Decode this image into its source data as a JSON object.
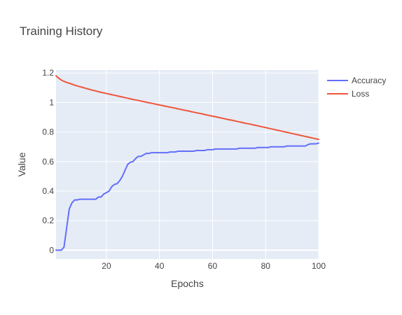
{
  "chart_data": {
    "type": "line",
    "title": "Training History",
    "xlabel": "Epochs",
    "ylabel": "Value",
    "xlim": [
      1,
      100
    ],
    "ylim": [
      -0.06,
      1.22
    ],
    "xticks": [
      20,
      40,
      60,
      80,
      100
    ],
    "yticks": [
      0,
      0.2,
      0.4,
      0.6,
      0.8,
      1,
      1.2
    ],
    "ytick_labels": [
      "0",
      "0.2",
      "0.4",
      "0.6",
      "0.8",
      "1",
      "1.2"
    ],
    "grid": true,
    "legend_position": "top-right",
    "x": [
      1,
      2,
      3,
      4,
      5,
      6,
      7,
      8,
      9,
      10,
      11,
      12,
      13,
      14,
      15,
      16,
      17,
      18,
      19,
      20,
      21,
      22,
      23,
      24,
      25,
      26,
      27,
      28,
      29,
      30,
      31,
      32,
      33,
      34,
      35,
      36,
      37,
      38,
      39,
      40,
      41,
      42,
      43,
      44,
      45,
      46,
      47,
      48,
      49,
      50,
      51,
      52,
      53,
      54,
      55,
      56,
      57,
      58,
      59,
      60,
      61,
      62,
      63,
      64,
      65,
      66,
      67,
      68,
      69,
      70,
      71,
      72,
      73,
      74,
      75,
      76,
      77,
      78,
      79,
      80,
      81,
      82,
      83,
      84,
      85,
      86,
      87,
      88,
      89,
      90,
      91,
      92,
      93,
      94,
      95,
      96,
      97,
      98,
      99,
      100
    ],
    "series": [
      {
        "name": "Accuracy",
        "color": "#636efa",
        "values": [
          0,
          0,
          0,
          0.02,
          0.15,
          0.28,
          0.32,
          0.34,
          0.34,
          0.345,
          0.345,
          0.345,
          0.345,
          0.345,
          0.345,
          0.345,
          0.36,
          0.36,
          0.38,
          0.39,
          0.4,
          0.43,
          0.445,
          0.45,
          0.47,
          0.5,
          0.54,
          0.58,
          0.595,
          0.6,
          0.62,
          0.635,
          0.635,
          0.645,
          0.655,
          0.655,
          0.66,
          0.66,
          0.66,
          0.66,
          0.66,
          0.66,
          0.66,
          0.665,
          0.665,
          0.665,
          0.67,
          0.67,
          0.67,
          0.67,
          0.67,
          0.67,
          0.67,
          0.675,
          0.675,
          0.675,
          0.675,
          0.68,
          0.68,
          0.68,
          0.685,
          0.685,
          0.685,
          0.685,
          0.685,
          0.685,
          0.685,
          0.685,
          0.685,
          0.69,
          0.69,
          0.69,
          0.69,
          0.69,
          0.69,
          0.69,
          0.695,
          0.695,
          0.695,
          0.695,
          0.695,
          0.7,
          0.7,
          0.7,
          0.7,
          0.7,
          0.7,
          0.705,
          0.705,
          0.705,
          0.705,
          0.705,
          0.705,
          0.705,
          0.705,
          0.715,
          0.72,
          0.72,
          0.72,
          0.725
        ]
      },
      {
        "name": "Loss",
        "color": "#ef553b",
        "values": [
          1.18,
          1.165,
          1.152,
          1.143,
          1.136,
          1.13,
          1.124,
          1.118,
          1.112,
          1.107,
          1.102,
          1.097,
          1.092,
          1.087,
          1.082,
          1.078,
          1.073,
          1.069,
          1.065,
          1.061,
          1.057,
          1.053,
          1.049,
          1.045,
          1.041,
          1.037,
          1.033,
          1.029,
          1.025,
          1.021,
          1.017,
          1.014,
          1.01,
          1.006,
          1.002,
          0.998,
          0.995,
          0.991,
          0.987,
          0.983,
          0.98,
          0.976,
          0.972,
          0.968,
          0.965,
          0.961,
          0.957,
          0.953,
          0.949,
          0.946,
          0.942,
          0.938,
          0.934,
          0.93,
          0.927,
          0.923,
          0.919,
          0.915,
          0.911,
          0.907,
          0.904,
          0.9,
          0.896,
          0.892,
          0.888,
          0.884,
          0.881,
          0.877,
          0.873,
          0.869,
          0.865,
          0.861,
          0.857,
          0.854,
          0.85,
          0.846,
          0.842,
          0.838,
          0.834,
          0.83,
          0.826,
          0.822,
          0.818,
          0.814,
          0.81,
          0.806,
          0.802,
          0.798,
          0.794,
          0.79,
          0.786,
          0.782,
          0.778,
          0.774,
          0.77,
          0.766,
          0.762,
          0.758,
          0.754,
          0.75
        ]
      }
    ]
  }
}
